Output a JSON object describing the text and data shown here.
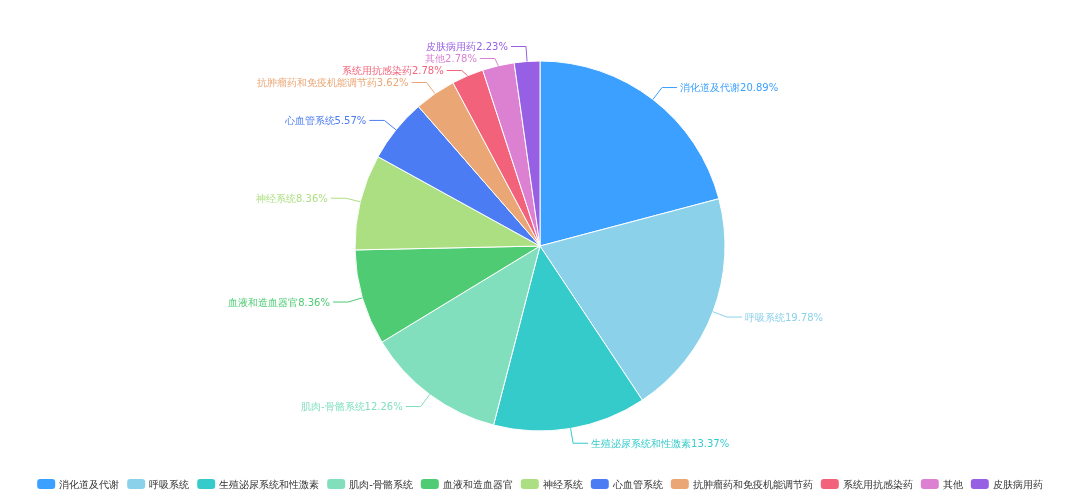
{
  "chart_data": {
    "type": "pie",
    "categories": [
      "消化道及代谢",
      "呼吸系统",
      "生殖泌尿系统和性激素",
      "肌肉-骨骼系统",
      "血液和造血器官",
      "神经系统",
      "心血管系统",
      "抗肿瘤药和免疫机能调节药",
      "系统用抗感染药",
      "其他",
      "皮肤病用药"
    ],
    "values": [
      20.89,
      19.78,
      13.37,
      12.26,
      8.36,
      8.36,
      5.57,
      3.62,
      2.78,
      2.78,
      2.23
    ],
    "colors": [
      "#3ba0ff",
      "#8bd1ea",
      "#36cbcb",
      "#82dfbe",
      "#4ecb73",
      "#acdf82",
      "#4c7cf3",
      "#eaa674",
      "#f2637b",
      "#dc81d2",
      "#975fe4"
    ],
    "value_labels": [
      "20.89%",
      "19.78%",
      "13.37%",
      "12.26%",
      "8.36%",
      "8.36%",
      "5.57%",
      "3.62%",
      "2.78%",
      "2.78%",
      "2.23%"
    ],
    "legend": "bottom"
  }
}
